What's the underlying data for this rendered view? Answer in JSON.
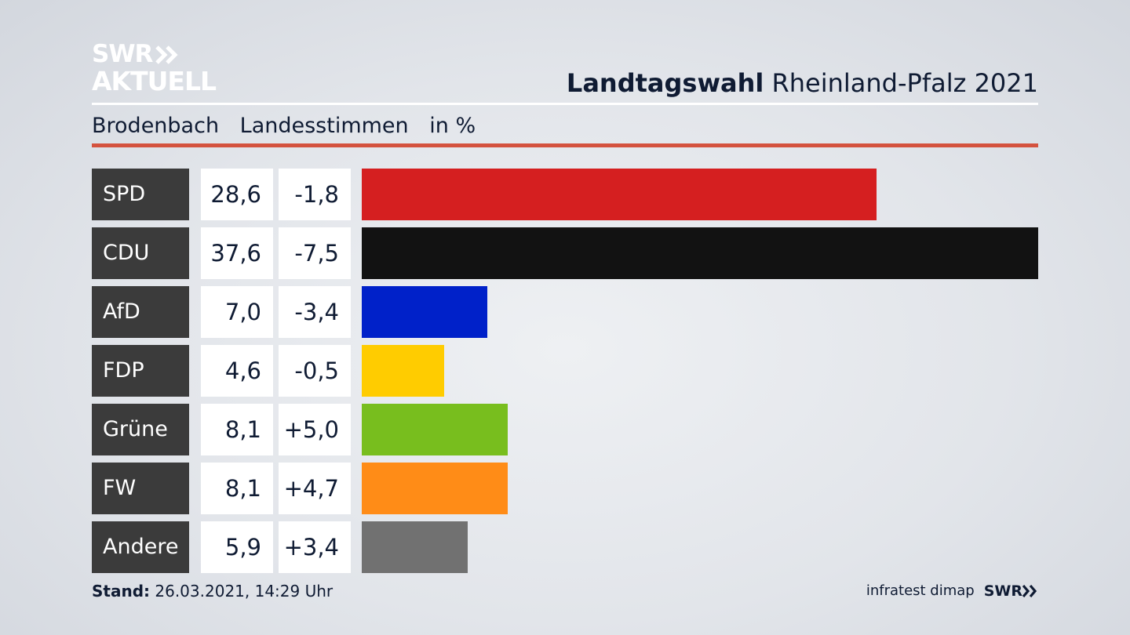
{
  "logo": {
    "line1": "SWR",
    "line2": "AKTUELL"
  },
  "header": {
    "title_bold": "Landtagswahl",
    "title_rest": "Rheinland-Pfalz 2021"
  },
  "subtitle": {
    "place": "Brodenbach",
    "metric": "Landesstimmen",
    "unit": "in %"
  },
  "footer": {
    "stand_label": "Stand:",
    "stand_value": "26.03.2021, 14:29 Uhr",
    "source": "infratest dimap",
    "brand": "SWR"
  },
  "chart_data": {
    "type": "bar",
    "orientation": "horizontal",
    "categories": [
      "SPD",
      "CDU",
      "AfD",
      "FDP",
      "Grüne",
      "FW",
      "Andere"
    ],
    "values": [
      28.6,
      37.6,
      7.0,
      4.6,
      8.1,
      8.1,
      5.9
    ],
    "value_labels": [
      "28,6",
      "37,6",
      "7,0",
      "4,6",
      "8,1",
      "8,1",
      "5,9"
    ],
    "diff_labels": [
      "-1,8",
      "-7,5",
      "-3,4",
      "-0,5",
      "+5,0",
      "+4,7",
      "+3,4"
    ],
    "colors": [
      "#d51f20",
      "#121212",
      "#0021c9",
      "#ffcc00",
      "#78be1e",
      "#ff8c17",
      "#717171"
    ],
    "xlim": [
      0,
      37.6
    ]
  }
}
